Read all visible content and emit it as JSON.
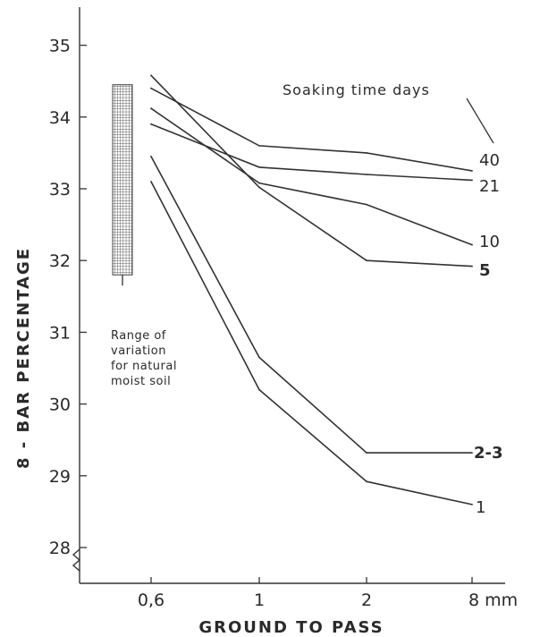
{
  "chart_data": {
    "type": "line",
    "xlabel": "GROUND TO PASS",
    "ylabel": "8 - BAR PERCENTAGE",
    "categories": [
      "0.6",
      "1",
      "2",
      "8 mm"
    ],
    "category_tick_labels": [
      "0,6",
      "1",
      "2",
      "8 mm"
    ],
    "ylim": [
      28,
      35.5
    ],
    "yticks": [
      28,
      29,
      30,
      31,
      32,
      33,
      34,
      35
    ],
    "legend_title": "Soaking time days",
    "series": [
      {
        "name": "40",
        "values": [
          34.4,
          33.6,
          33.5,
          33.25
        ]
      },
      {
        "name": "21",
        "values": [
          33.9,
          33.3,
          33.2,
          33.12
        ]
      },
      {
        "name": "10",
        "values": [
          34.12,
          33.08,
          32.78,
          32.22
        ]
      },
      {
        "name": "5",
        "values": [
          34.58,
          33.02,
          32.0,
          31.92
        ]
      },
      {
        "name": "2-3",
        "values": [
          33.45,
          30.65,
          29.32,
          29.32
        ]
      },
      {
        "name": "1",
        "values": [
          33.1,
          30.2,
          28.92,
          28.6
        ]
      }
    ],
    "range_band": {
      "ymin": 31.8,
      "ymax": 34.45
    },
    "annotation": [
      "Range of",
      "variation",
      "for natural",
      "moist soil"
    ],
    "grid": false,
    "legend_placement": "right"
  }
}
